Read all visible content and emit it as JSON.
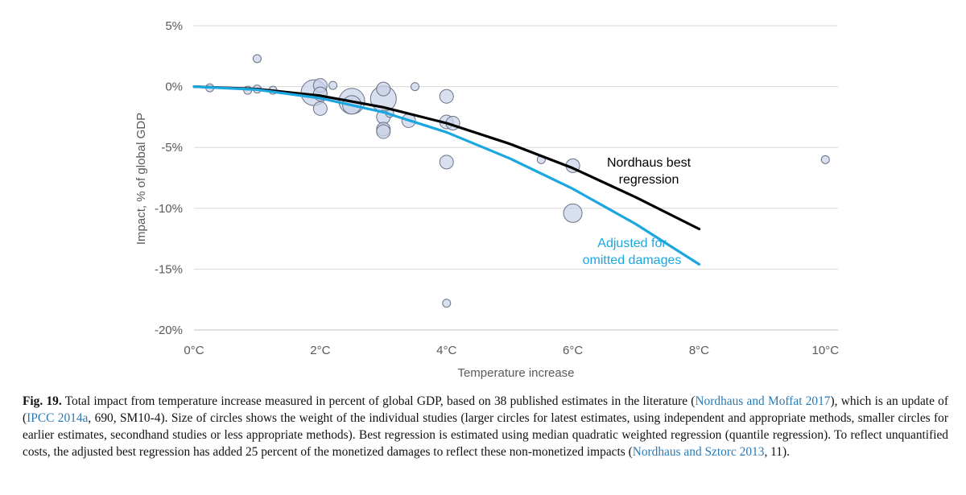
{
  "chart_data": {
    "type": "scatter",
    "title": "",
    "xlabel": "Temperature increase",
    "ylabel": "Impact, % of global GDP",
    "xlim": [
      0,
      10.2
    ],
    "ylim": [
      -20,
      5
    ],
    "x_ticks": [
      {
        "value": 0,
        "label": "0°C"
      },
      {
        "value": 2,
        "label": "2°C"
      },
      {
        "value": 4,
        "label": "4°C"
      },
      {
        "value": 6,
        "label": "6°C"
      },
      {
        "value": 8,
        "label": "8°C"
      },
      {
        "value": 10,
        "label": "10°C"
      }
    ],
    "y_ticks": [
      {
        "value": 5,
        "label": "5%"
      },
      {
        "value": 0,
        "label": "0%"
      },
      {
        "value": -5,
        "label": "-5%"
      },
      {
        "value": -10,
        "label": "-10%"
      },
      {
        "value": -15,
        "label": "-15%"
      },
      {
        "value": -20,
        "label": "-20%"
      }
    ],
    "grid": "horizontal",
    "points": [
      {
        "x": 0.25,
        "y": -0.1,
        "weight": 1
      },
      {
        "x": 0.85,
        "y": -0.3,
        "weight": 1
      },
      {
        "x": 1.0,
        "y": 2.3,
        "weight": 1
      },
      {
        "x": 1.0,
        "y": -0.2,
        "weight": 1
      },
      {
        "x": 1.25,
        "y": -0.3,
        "weight": 1
      },
      {
        "x": 1.9,
        "y": -0.5,
        "weight": 4
      },
      {
        "x": 2.0,
        "y": 0.1,
        "weight": 2
      },
      {
        "x": 2.0,
        "y": -0.6,
        "weight": 2
      },
      {
        "x": 2.0,
        "y": -1.8,
        "weight": 2
      },
      {
        "x": 2.2,
        "y": 0.1,
        "weight": 1
      },
      {
        "x": 2.5,
        "y": -1.2,
        "weight": 4
      },
      {
        "x": 2.5,
        "y": -1.5,
        "weight": 3
      },
      {
        "x": 3.0,
        "y": -0.2,
        "weight": 2
      },
      {
        "x": 3.0,
        "y": -1.0,
        "weight": 4
      },
      {
        "x": 3.0,
        "y": -2.5,
        "weight": 2
      },
      {
        "x": 3.0,
        "y": -3.5,
        "weight": 2
      },
      {
        "x": 3.0,
        "y": -3.7,
        "weight": 2
      },
      {
        "x": 3.1,
        "y": -2.2,
        "weight": 1
      },
      {
        "x": 3.4,
        "y": -2.8,
        "weight": 2
      },
      {
        "x": 3.5,
        "y": 0.0,
        "weight": 1
      },
      {
        "x": 4.0,
        "y": -0.8,
        "weight": 2
      },
      {
        "x": 4.0,
        "y": -2.9,
        "weight": 2
      },
      {
        "x": 4.1,
        "y": -3.0,
        "weight": 2
      },
      {
        "x": 4.0,
        "y": -6.2,
        "weight": 2
      },
      {
        "x": 4.0,
        "y": -17.8,
        "weight": 1
      },
      {
        "x": 5.5,
        "y": -6.0,
        "weight": 1
      },
      {
        "x": 6.0,
        "y": -6.5,
        "weight": 2
      },
      {
        "x": 6.0,
        "y": -10.4,
        "weight": 3
      },
      {
        "x": 10.0,
        "y": -6.0,
        "weight": 1
      }
    ],
    "series": [
      {
        "name": "Nordhaus best regression",
        "type": "line",
        "color": "#000000",
        "x": [
          0,
          1,
          2,
          3,
          4,
          5,
          6,
          7,
          8
        ],
        "y": [
          0,
          -0.2,
          -0.75,
          -1.7,
          -3.0,
          -4.7,
          -6.7,
          -9.1,
          -11.7
        ]
      },
      {
        "name": "Adjusted for omitted damages",
        "type": "line",
        "color": "#1aa7e0",
        "x": [
          0,
          1,
          2,
          3,
          4,
          5,
          6,
          7,
          8
        ],
        "y": [
          0,
          -0.25,
          -0.95,
          -2.1,
          -3.75,
          -5.9,
          -8.4,
          -11.3,
          -14.6
        ]
      }
    ],
    "annotations": [
      {
        "series": 0,
        "lines": [
          "Nordhaus best",
          "regression"
        ],
        "color": "#000000"
      },
      {
        "series": 1,
        "lines": [
          "Adjusted for",
          "omitted damages"
        ],
        "color": "#1aa7e0"
      }
    ],
    "colors": {
      "bubble_fill": "#c9d3e8",
      "bubble_stroke": "#6a7386",
      "grid": "#d9d9d9",
      "axis": "#bfbfbf"
    }
  },
  "caption": {
    "label": "Fig. 19.",
    "segments": [
      {
        "text": " Total impact from temperature increase measured in percent of global GDP, based on 38 published estimates in the literature (",
        "link": false
      },
      {
        "text": "Nordhaus and Moffat 2017",
        "link": true
      },
      {
        "text": "), which is an update of (",
        "link": false
      },
      {
        "text": "IPCC 2014a",
        "link": true
      },
      {
        "text": ", 690, SM10-4). Size of circles shows the weight of the individual studies (larger circles for latest estimates, using independent and appropriate methods, smaller circles for earlier estimates, secondhand studies or less appropriate methods). Best regression is estimated using median quadratic weighted regression (quantile regression). To reflect unquantified costs, the adjusted best regression has added 25 percent of the monetized damages to reflect these non-monetized impacts (",
        "link": false
      },
      {
        "text": "Nordhaus and Sztorc 2013",
        "link": true
      },
      {
        "text": ", 11).",
        "link": false
      }
    ]
  }
}
